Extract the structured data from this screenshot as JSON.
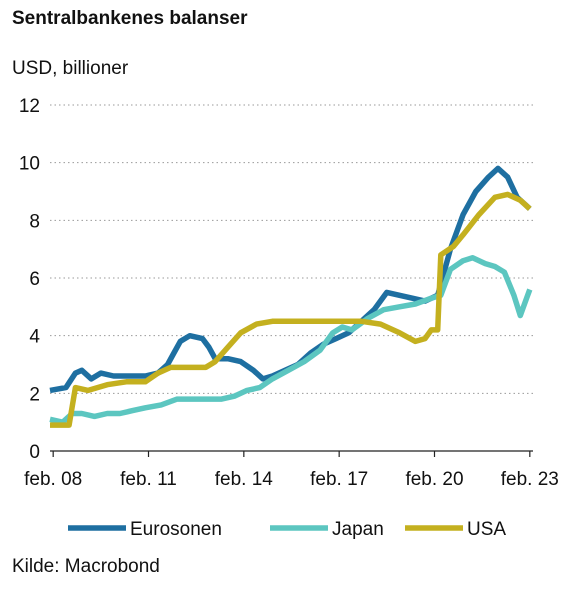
{
  "title": "Sentralbankenes balanser",
  "unit_label": "USD, billioner",
  "source": "Kilde: Macrobond",
  "chart_data": {
    "type": "line",
    "title": "Sentralbankenes balanser",
    "ylabel": "USD, billioner",
    "xlabel": "",
    "ylim": [
      0,
      12
    ],
    "xlim": [
      2008.0,
      2023.2
    ],
    "yticks": [
      0,
      2,
      4,
      6,
      8,
      10,
      12
    ],
    "yticklabels": [
      "0",
      "2",
      "4",
      "6",
      "8",
      "10",
      "12"
    ],
    "xticks": [
      2008.1,
      2011.1,
      2014.1,
      2017.1,
      2020.1,
      2023.1
    ],
    "xticklabels": [
      "feb. 08",
      "feb. 11",
      "feb. 14",
      "feb. 17",
      "feb. 20",
      "feb. 23"
    ],
    "grid": "horizontal dotted",
    "legend": "bottom",
    "series": [
      {
        "name": "Eurosonen",
        "color": "#1e6fa1",
        "points": [
          [
            2008.0,
            2.1
          ],
          [
            2008.5,
            2.2
          ],
          [
            2008.8,
            2.7
          ],
          [
            2009.0,
            2.8
          ],
          [
            2009.3,
            2.5
          ],
          [
            2009.6,
            2.7
          ],
          [
            2010.0,
            2.6
          ],
          [
            2010.5,
            2.6
          ],
          [
            2011.0,
            2.6
          ],
          [
            2011.4,
            2.7
          ],
          [
            2011.7,
            3.0
          ],
          [
            2011.9,
            3.4
          ],
          [
            2012.1,
            3.8
          ],
          [
            2012.4,
            4.0
          ],
          [
            2012.8,
            3.9
          ],
          [
            2013.0,
            3.6
          ],
          [
            2013.2,
            3.2
          ],
          [
            2013.6,
            3.2
          ],
          [
            2014.0,
            3.1
          ],
          [
            2014.4,
            2.8
          ],
          [
            2014.7,
            2.5
          ],
          [
            2015.0,
            2.6
          ],
          [
            2015.4,
            2.8
          ],
          [
            2015.8,
            3.0
          ],
          [
            2016.2,
            3.4
          ],
          [
            2016.6,
            3.7
          ],
          [
            2017.0,
            3.9
          ],
          [
            2017.4,
            4.1
          ],
          [
            2017.8,
            4.5
          ],
          [
            2018.2,
            4.9
          ],
          [
            2018.6,
            5.5
          ],
          [
            2019.0,
            5.4
          ],
          [
            2019.4,
            5.3
          ],
          [
            2019.8,
            5.2
          ],
          [
            2020.2,
            5.4
          ],
          [
            2020.6,
            7.0
          ],
          [
            2021.0,
            8.2
          ],
          [
            2021.4,
            9.0
          ],
          [
            2021.8,
            9.5
          ],
          [
            2022.1,
            9.8
          ],
          [
            2022.4,
            9.5
          ],
          [
            2022.7,
            8.8
          ],
          [
            2022.9,
            8.6
          ],
          [
            2023.1,
            8.4
          ]
        ]
      },
      {
        "name": "Japan",
        "color": "#5cc6c0",
        "points": [
          [
            2008.0,
            1.1
          ],
          [
            2008.4,
            1.0
          ],
          [
            2008.7,
            1.3
          ],
          [
            2009.0,
            1.3
          ],
          [
            2009.4,
            1.2
          ],
          [
            2009.8,
            1.3
          ],
          [
            2010.2,
            1.3
          ],
          [
            2010.6,
            1.4
          ],
          [
            2011.0,
            1.5
          ],
          [
            2011.5,
            1.6
          ],
          [
            2012.0,
            1.8
          ],
          [
            2012.5,
            1.8
          ],
          [
            2013.0,
            1.8
          ],
          [
            2013.4,
            1.8
          ],
          [
            2013.8,
            1.9
          ],
          [
            2014.2,
            2.1
          ],
          [
            2014.6,
            2.2
          ],
          [
            2015.0,
            2.5
          ],
          [
            2015.5,
            2.8
          ],
          [
            2016.0,
            3.1
          ],
          [
            2016.5,
            3.5
          ],
          [
            2016.9,
            4.1
          ],
          [
            2017.2,
            4.3
          ],
          [
            2017.5,
            4.2
          ],
          [
            2018.0,
            4.6
          ],
          [
            2018.5,
            4.9
          ],
          [
            2019.0,
            5.0
          ],
          [
            2019.5,
            5.1
          ],
          [
            2020.0,
            5.3
          ],
          [
            2020.3,
            5.4
          ],
          [
            2020.6,
            6.3
          ],
          [
            2021.0,
            6.6
          ],
          [
            2021.3,
            6.7
          ],
          [
            2021.7,
            6.5
          ],
          [
            2022.0,
            6.4
          ],
          [
            2022.3,
            6.2
          ],
          [
            2022.6,
            5.4
          ],
          [
            2022.8,
            4.7
          ],
          [
            2023.0,
            5.3
          ],
          [
            2023.1,
            5.6
          ]
        ]
      },
      {
        "name": "USA",
        "color": "#c4b01f",
        "points": [
          [
            2008.0,
            0.9
          ],
          [
            2008.6,
            0.9
          ],
          [
            2008.8,
            2.2
          ],
          [
            2009.2,
            2.1
          ],
          [
            2009.8,
            2.3
          ],
          [
            2010.4,
            2.4
          ],
          [
            2011.0,
            2.4
          ],
          [
            2011.4,
            2.7
          ],
          [
            2011.8,
            2.9
          ],
          [
            2012.4,
            2.9
          ],
          [
            2012.9,
            2.9
          ],
          [
            2013.2,
            3.1
          ],
          [
            2013.6,
            3.6
          ],
          [
            2014.0,
            4.1
          ],
          [
            2014.5,
            4.4
          ],
          [
            2015.0,
            4.5
          ],
          [
            2016.0,
            4.5
          ],
          [
            2017.0,
            4.5
          ],
          [
            2017.8,
            4.5
          ],
          [
            2018.4,
            4.4
          ],
          [
            2019.0,
            4.1
          ],
          [
            2019.5,
            3.8
          ],
          [
            2019.8,
            3.9
          ],
          [
            2020.0,
            4.2
          ],
          [
            2020.2,
            4.2
          ],
          [
            2020.3,
            6.8
          ],
          [
            2020.7,
            7.1
          ],
          [
            2021.0,
            7.5
          ],
          [
            2021.5,
            8.2
          ],
          [
            2022.0,
            8.8
          ],
          [
            2022.4,
            8.9
          ],
          [
            2022.8,
            8.7
          ],
          [
            2023.1,
            8.4
          ]
        ]
      }
    ]
  }
}
